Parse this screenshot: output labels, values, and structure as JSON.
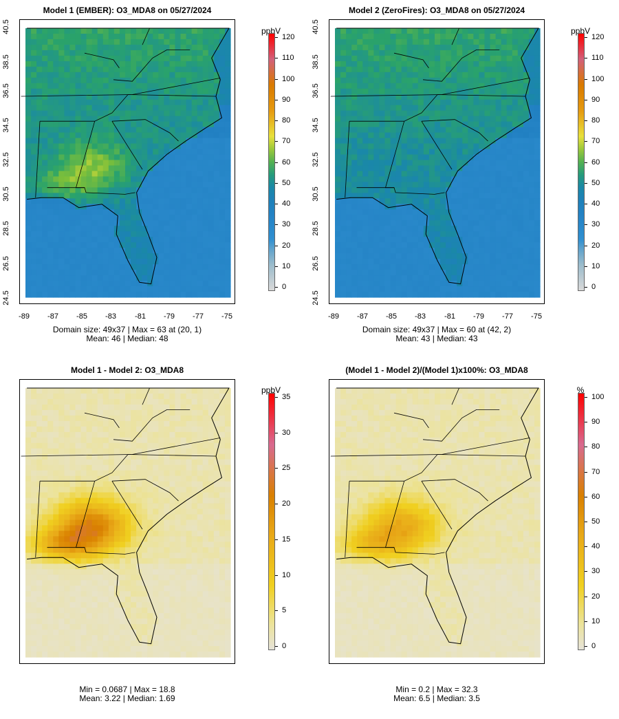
{
  "panels": [
    {
      "title": "Model 1 (EMBER): O3_MDA8 on 05/27/2024",
      "stats_line1": "Domain size: 49x37 | Max = 63 at (20, 1)",
      "stats_line2": "Mean: 46 |  Median: 48",
      "colorbar": {
        "unit": "ppbV",
        "labels": [
          "0",
          "10",
          "20",
          "30",
          "40",
          "50",
          "60",
          "70",
          "80",
          "90",
          "100",
          "110",
          "120"
        ]
      },
      "field": "m1"
    },
    {
      "title": "Model 2 (ZeroFires): O3_MDA8 on 05/27/2024",
      "stats_line1": "Domain size: 49x37 | Max = 60 at (42, 2)",
      "stats_line2": "Mean: 43 |  Median: 43",
      "colorbar": {
        "unit": "ppbV",
        "labels": [
          "0",
          "10",
          "20",
          "30",
          "40",
          "50",
          "60",
          "70",
          "80",
          "90",
          "100",
          "110",
          "120"
        ]
      },
      "field": "m2"
    },
    {
      "title": "Model 1 - Model 2: O3_MDA8",
      "stats_line1": "Min = 0.0687 | Max = 18.8",
      "stats_line2": "Mean: 3.22 |  Median: 1.69",
      "colorbar": {
        "unit": "ppbV",
        "labels": [
          "0",
          "5",
          "10",
          "15",
          "20",
          "25",
          "30",
          "35"
        ]
      },
      "field": "diff"
    },
    {
      "title": "(Model 1 - Model 2)/(Model 1)x100%: O3_MDA8",
      "stats_line1": "Min = 0.2 | Max = 32.3",
      "stats_line2": "Mean: 6.5 |  Median: 3.5",
      "colorbar": {
        "unit": "%",
        "labels": [
          "0",
          "10",
          "20",
          "30",
          "40",
          "50",
          "60",
          "70",
          "80",
          "90",
          "100"
        ]
      },
      "field": "pct"
    }
  ],
  "axes": {
    "lat_ticks": [
      "24.5",
      "26.5",
      "28.5",
      "30.5",
      "32.5",
      "34.5",
      "36.5",
      "38.5",
      "40.5"
    ],
    "lon_ticks": [
      "-89",
      "-87",
      "-85",
      "-83",
      "-81",
      "-79",
      "-77",
      "-75"
    ]
  },
  "colors": {
    "ozone_low": "#d9d9d9",
    "ozone_blue": "#2f8fd0",
    "ozone_green": "#2aa36a",
    "ozone_yellow": "#e8e03c",
    "ozone_orange": "#d97a00",
    "ozone_red": "#ff0000",
    "diff_base": "#e6e3d8",
    "diff_yellow": "#f0d020",
    "diff_orange": "#d98000"
  }
}
